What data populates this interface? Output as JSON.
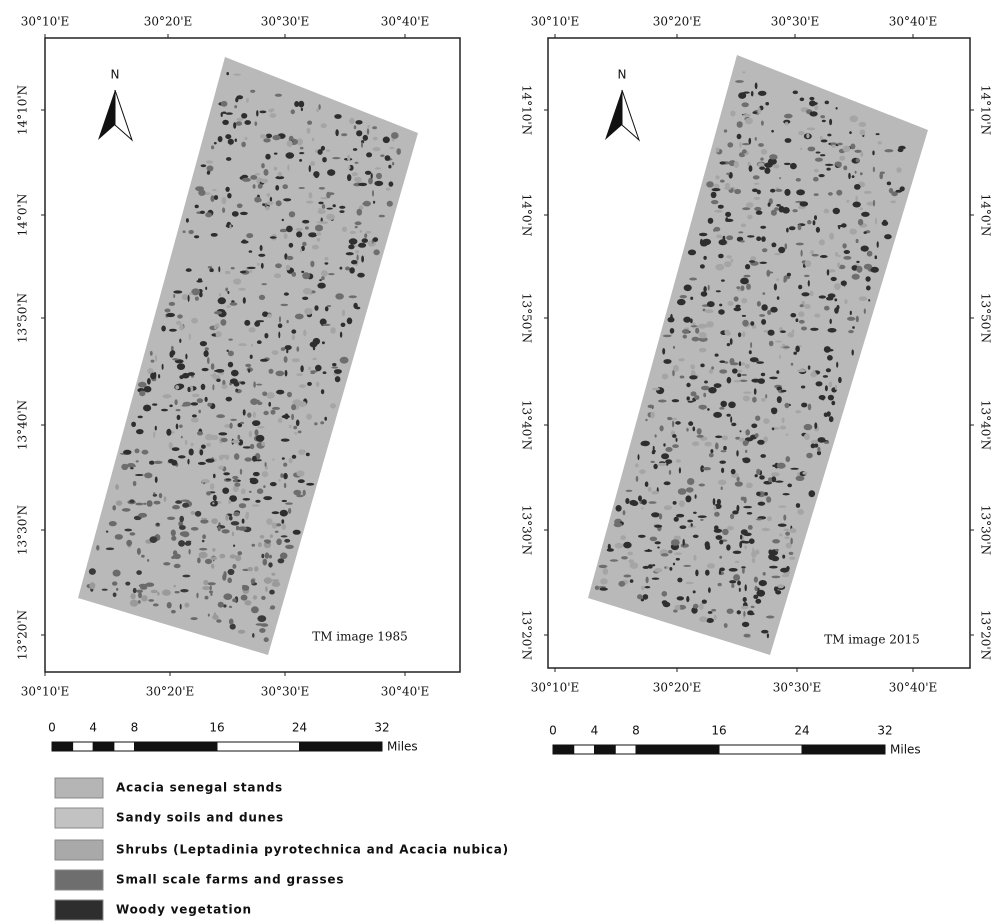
{
  "maps": [
    {
      "top_longitudes": [
        "30°10'E",
        "30°20'E",
        "30°30'E",
        "30°40'E"
      ],
      "bottom_longitudes": [
        "30°10'E",
        "30°20'E",
        "30°30'E",
        "30°40'E"
      ],
      "left_latitudes": [
        "14°10'N",
        "14°0'N",
        "13°50'N",
        "13°40'N",
        "13°30'N",
        "13°20'N"
      ],
      "north": "N",
      "caption": "TM image 1985"
    },
    {
      "top_longitudes": [
        "30°10'E",
        "30°20'E",
        "30°30'E",
        "30°40'E"
      ],
      "bottom_longitudes": [
        "30°10'E",
        "30°20'E",
        "30°30'E",
        "30°40'E"
      ],
      "left_latitudes": [
        "14°10'N",
        "14°0'N",
        "13°50'N",
        "13°40'N",
        "13°30'N",
        "13°20'N"
      ],
      "right_latitudes": [
        "14°10'N",
        "14°0'N",
        "13°50'N",
        "13°40'N",
        "13°30'N",
        "13°20'N"
      ],
      "north": "N",
      "caption": "TM image 2015"
    }
  ],
  "scale_bars": [
    {
      "labels": [
        "0",
        "4",
        "8",
        "16",
        "24",
        "32"
      ],
      "unit": "Miles"
    },
    {
      "labels": [
        "0",
        "4",
        "8",
        "16",
        "24",
        "32"
      ],
      "unit": "Miles"
    }
  ],
  "legend": [
    "Acacia senegal stands",
    "Sandy soils and dunes",
    "Shrubs (Leptadinia pyrotechnica and Acacia nubica)",
    "Small scale farms and grasses",
    "Woody vegetation"
  ]
}
